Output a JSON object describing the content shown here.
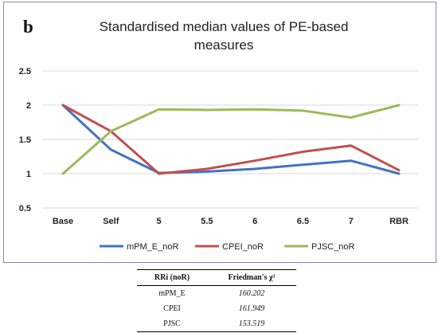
{
  "panel_label": "b",
  "chart_data": {
    "type": "line",
    "title": "Standardised median values of PE-based measures",
    "title_lines": [
      "Standardised median values of PE-based",
      "measures"
    ],
    "xlabel": "",
    "ylabel": "",
    "categories": [
      "Base",
      "Self",
      "5",
      "5.5",
      "6",
      "6.5",
      "7",
      "RBR"
    ],
    "ylim": [
      0.5,
      2.5
    ],
    "yticks": [
      "0.5",
      "1",
      "1.5",
      "2",
      "2.5"
    ],
    "grid": true,
    "legend_position": "bottom",
    "series": [
      {
        "name": "mPM_E_noR",
        "color": "#4472c4",
        "values": [
          2.0,
          1.35,
          1.01,
          1.03,
          1.07,
          1.13,
          1.19,
          1.0
        ]
      },
      {
        "name": "CPEI_noR",
        "color": "#c0504d",
        "values": [
          2.0,
          1.62,
          1.0,
          1.07,
          1.19,
          1.32,
          1.41,
          1.05
        ]
      },
      {
        "name": "PJSC_noR",
        "color": "#9bbb59",
        "values": [
          1.0,
          1.62,
          1.94,
          1.93,
          1.94,
          1.92,
          1.82,
          2.0
        ]
      }
    ]
  },
  "table": {
    "headers": [
      "RRi (noR)",
      "Friedman's χ²"
    ],
    "rows": [
      {
        "label": "mPM_E",
        "value": "160.202"
      },
      {
        "label": "CPEI",
        "value": "161.949"
      },
      {
        "label": "PJSC",
        "value": "153.519"
      }
    ]
  }
}
